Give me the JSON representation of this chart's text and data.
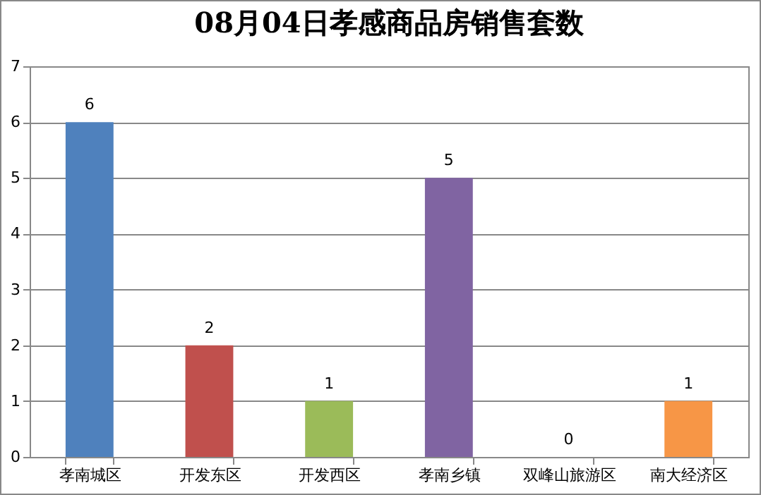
{
  "chart_data": {
    "type": "bar",
    "title": "08月04日孝感商品房销售套数",
    "categories": [
      "孝南城区",
      "开发东区",
      "开发西区",
      "孝南乡镇",
      "双峰山旅游区",
      "南大经济区"
    ],
    "values": [
      6,
      2,
      1,
      5,
      0,
      1
    ],
    "colors": [
      "#4f81bd",
      "#c0504d",
      "#9bbb59",
      "#8064a2",
      "#4bacc6",
      "#f79646"
    ],
    "ylim": [
      0,
      7
    ],
    "yticks": [
      0,
      1,
      2,
      3,
      4,
      5,
      6,
      7
    ],
    "grid": "y",
    "data_labels": true,
    "legend": false
  }
}
